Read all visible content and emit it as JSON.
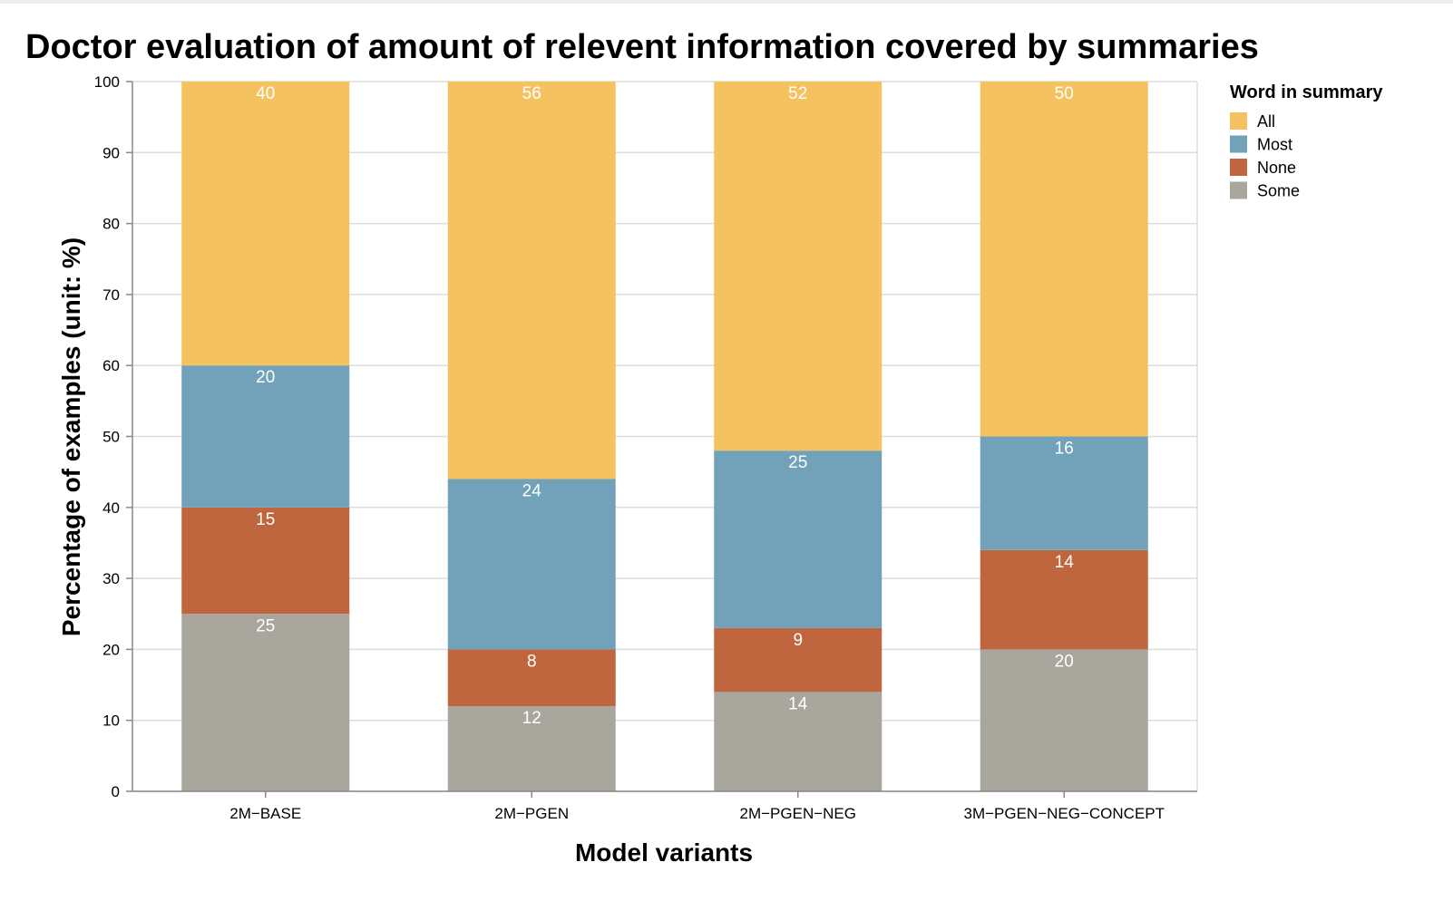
{
  "chart_data": {
    "type": "bar",
    "stacked": true,
    "title": "Doctor evaluation of amount of relevent information covered by summaries",
    "xlabel": "Model variants",
    "ylabel": "Percentage of examples (unit: %)",
    "ylim": [
      0,
      100
    ],
    "yticks": [
      0,
      10,
      20,
      30,
      40,
      50,
      60,
      70,
      80,
      90,
      100
    ],
    "grid": true,
    "legend": {
      "title": "Word in summary",
      "placement": "right-top"
    },
    "categories": [
      "2M−BASE",
      "2M−PGEN",
      "2M−PGEN−NEG",
      "3M−PGEN−NEG−CONCEPT"
    ],
    "series": [
      {
        "name": "Some",
        "color": "#a9a69e",
        "values": [
          25,
          12,
          14,
          20
        ]
      },
      {
        "name": "None",
        "color": "#c0663f",
        "values": [
          15,
          8,
          9,
          14
        ]
      },
      {
        "name": "Most",
        "color": "#72a2ba",
        "values": [
          20,
          24,
          25,
          16
        ]
      },
      {
        "name": "All",
        "color": "#f5c260",
        "values": [
          40,
          56,
          52,
          50
        ]
      }
    ],
    "legend_order": [
      "All",
      "Most",
      "None",
      "Some"
    ],
    "label_color": "#ffffff"
  }
}
